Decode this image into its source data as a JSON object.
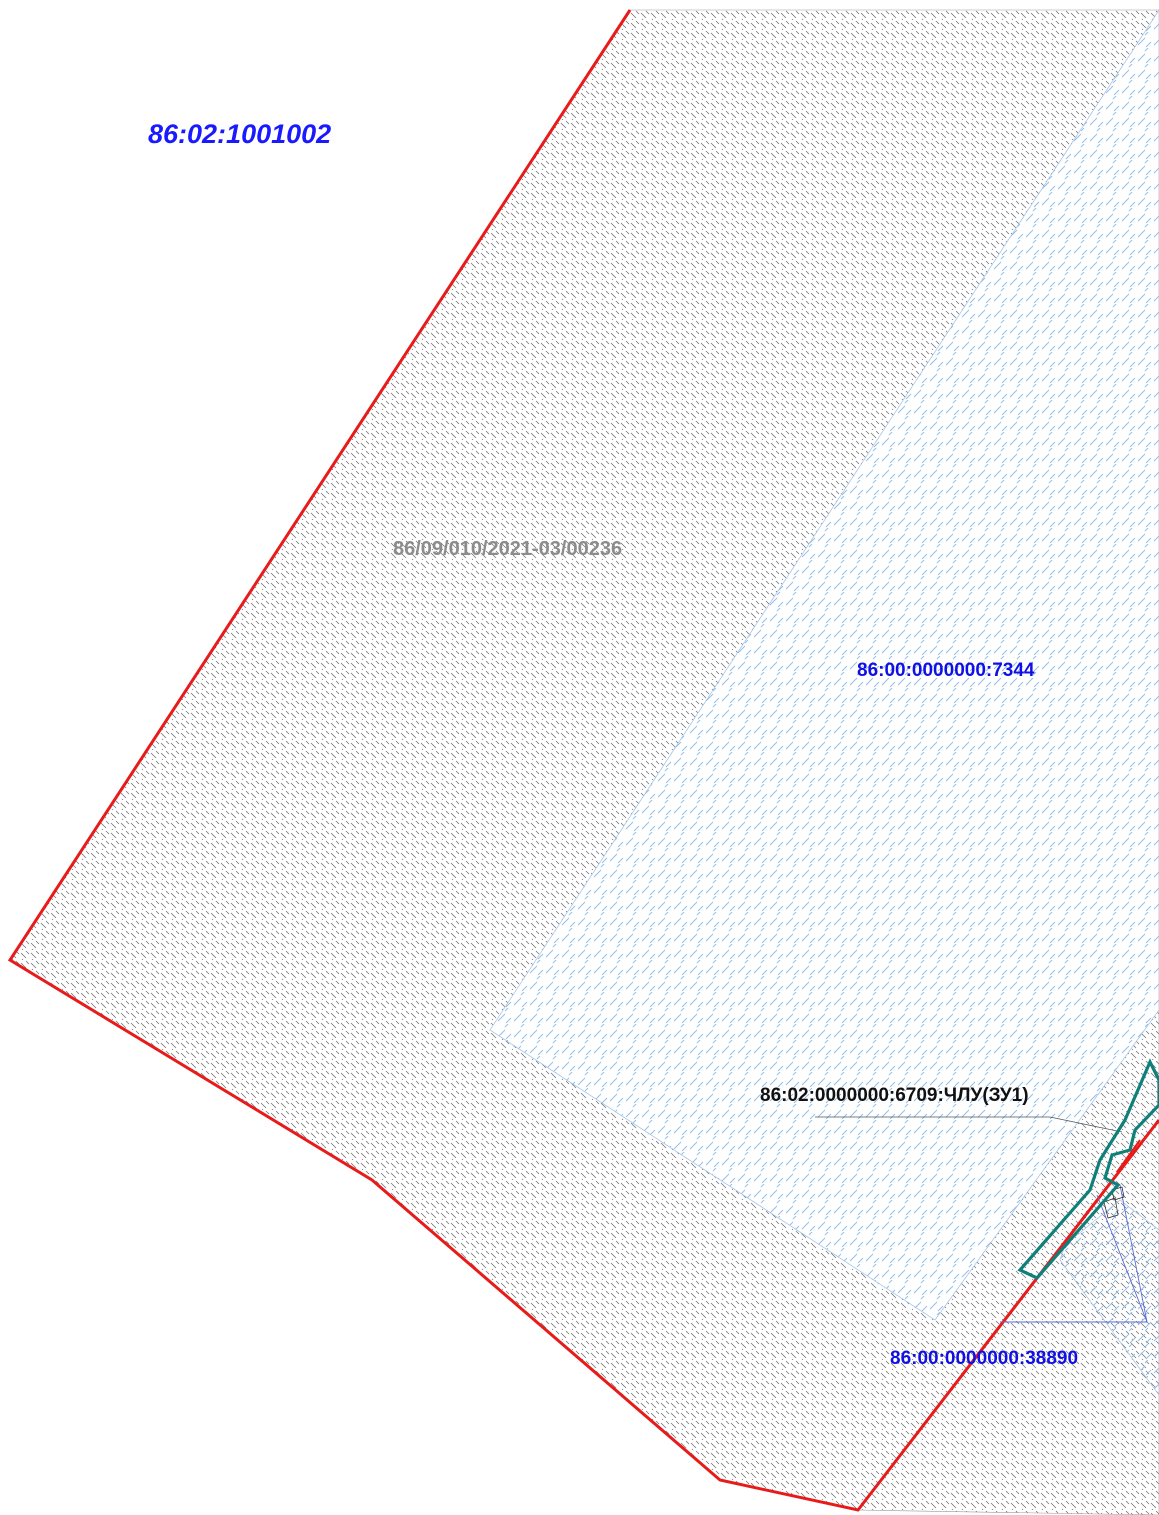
{
  "map": {
    "labels": {
      "quarter": "86:02:1001002",
      "zone_register": "86/09/010/2021-03/00236",
      "parcel_7344": "86:00:0000000:7344",
      "parcel_6709": "86:02:0000000:6709:ЧЛУ(ЗУ1)",
      "parcel_38890": "86:00:0000000:38890"
    },
    "colors": {
      "quarter_label": "#1a1aff",
      "zone_label": "#8c8c8c",
      "parcel_label": "#1010e6",
      "leader_text": "#111111",
      "boundary": "#e81b1b",
      "new_parcel": "#0f7f7a",
      "blue_hatch": "#7fb2e6",
      "grey_hatch": "#6a6a6a"
    }
  }
}
